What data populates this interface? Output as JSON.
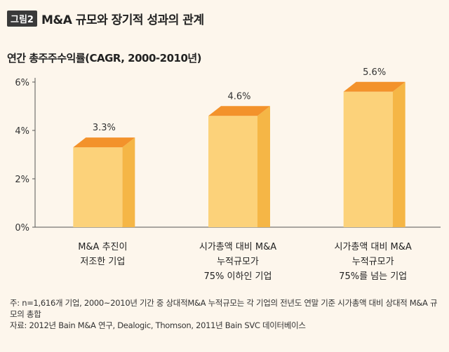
{
  "figure": {
    "badge": "그림2",
    "title": "M&A 규모와 장기적 성과의 관계",
    "subtitle": "연간 총주주수익률(CAGR, 2000-2010년)"
  },
  "chart_data": {
    "type": "bar",
    "categories": [
      [
        "M&A 추진이",
        "저조한 기업"
      ],
      [
        "시가총액 대비 M&A",
        "누적규모가",
        "75% 이하인 기업"
      ],
      [
        "시가총액 대비 M&A",
        "누적규모가",
        "75%를 넘는 기업"
      ]
    ],
    "values": [
      3.3,
      4.6,
      5.6
    ],
    "value_labels": [
      "3.3%",
      "4.6%",
      "5.6%"
    ],
    "y_ticks": [
      "0%",
      "2%",
      "4%",
      "6%"
    ],
    "ylim": [
      0,
      6
    ],
    "grid": false,
    "colors": {
      "front": "#fcd27a",
      "side": "#f5b646",
      "top": "#f3922b"
    }
  },
  "notes": {
    "note": "주: n=1,616개 기업, 2000~2010년 기간 중 상대적M&A 누적규모는 각 기업의 전년도 연말 기준 시가총액 대비 상대적 M&A 규모의 총합",
    "source": "자료: 2012년 Bain M&A 연구, Dealogic, Thomson, 2011년 Bain SVC 데이터베이스"
  }
}
